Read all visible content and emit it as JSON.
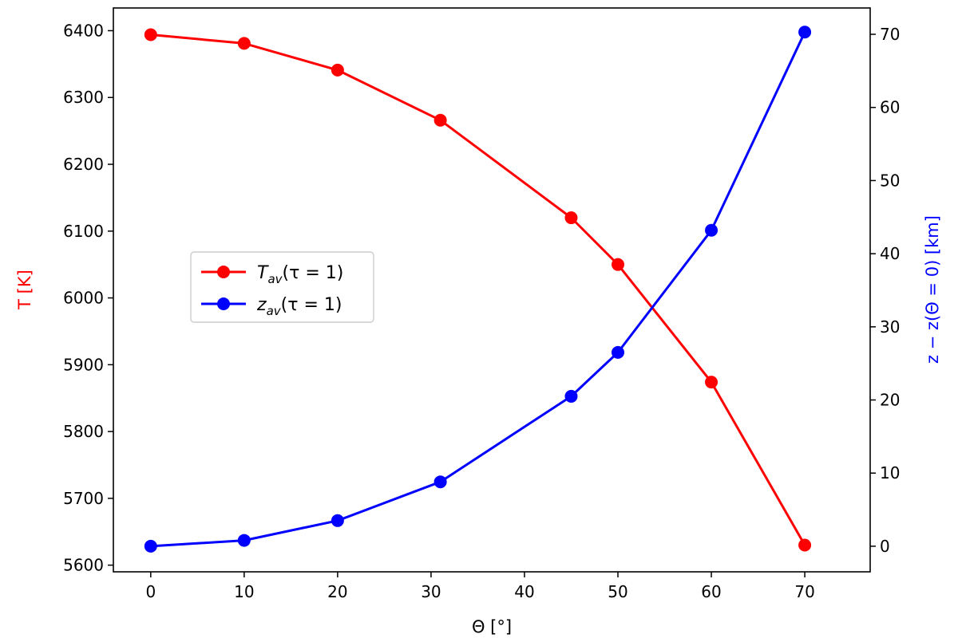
{
  "chart_data": {
    "type": "line",
    "x": [
      0,
      10,
      20,
      31,
      45,
      50,
      60,
      70
    ],
    "xlabel": "Θ [°]",
    "xlim": [
      -4,
      77
    ],
    "xticks": [
      0,
      10,
      20,
      30,
      40,
      50,
      60,
      70
    ],
    "left_axis": {
      "label": "T [K]",
      "color": "#ff0000",
      "ylim": [
        5590,
        6434
      ],
      "ticks": [
        5600,
        5700,
        5800,
        5900,
        6000,
        6100,
        6200,
        6300,
        6400
      ]
    },
    "right_axis": {
      "label": "z − z(Θ = 0) [km]",
      "color": "#0000ff",
      "ylim": [
        -3.5,
        73.6
      ],
      "ticks": [
        0,
        10,
        20,
        30,
        40,
        50,
        60,
        70
      ]
    },
    "series": [
      {
        "name": "T_av(τ = 1)",
        "axis": "left",
        "color": "#ff0000",
        "marker": "circle",
        "values": [
          6394,
          6381,
          6341,
          6266,
          6120,
          6050,
          5874,
          5630
        ]
      },
      {
        "name": "z_av(τ = 1)",
        "axis": "right",
        "color": "#0000ff",
        "marker": "circle",
        "values": [
          0,
          0.8,
          3.5,
          8.8,
          20.5,
          26.5,
          43.2,
          70.3
        ]
      }
    ],
    "legend": {
      "placement": "center-left",
      "entries": [
        {
          "var": "T",
          "sub": "av",
          "rest": "(τ = 1)",
          "color": "#ff0000"
        },
        {
          "var": "z",
          "sub": "av",
          "rest": "(τ = 1)",
          "color": "#0000ff"
        }
      ]
    },
    "grid": false
  }
}
